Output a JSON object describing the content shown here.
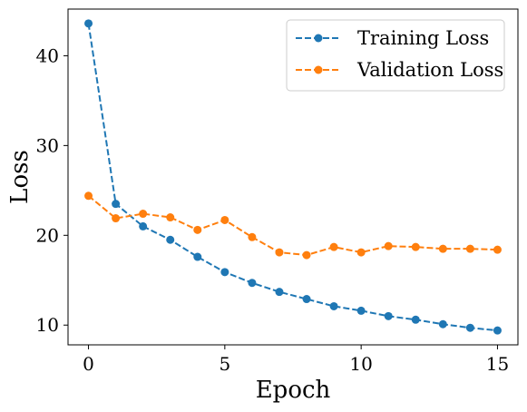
{
  "chart_data": {
    "type": "line",
    "title": "",
    "xlabel": "Epoch",
    "ylabel": "Loss",
    "xlim": [
      -0.75,
      15.75
    ],
    "ylim": [
      7.8,
      45.2
    ],
    "xticks": [
      0,
      5,
      10,
      15
    ],
    "yticks": [
      10,
      20,
      30,
      40
    ],
    "grid": false,
    "legend_position": "top-right",
    "x": [
      0,
      1,
      2,
      3,
      4,
      5,
      6,
      7,
      8,
      9,
      10,
      11,
      12,
      13,
      14,
      15
    ],
    "series": [
      {
        "name": "Training Loss",
        "color": "#1f77b4",
        "line_style": "dashed",
        "marker": "circle",
        "values": [
          43.6,
          23.5,
          21.0,
          19.5,
          17.6,
          15.9,
          14.7,
          13.7,
          12.9,
          12.1,
          11.6,
          11.0,
          10.6,
          10.1,
          9.7,
          9.4
        ]
      },
      {
        "name": "Validation Loss",
        "color": "#ff7f0e",
        "line_style": "dashed",
        "marker": "circle",
        "values": [
          24.4,
          21.9,
          22.4,
          22.0,
          20.6,
          21.7,
          19.8,
          18.1,
          17.8,
          18.7,
          18.1,
          18.8,
          18.7,
          18.5,
          18.5,
          18.4
        ]
      }
    ]
  }
}
